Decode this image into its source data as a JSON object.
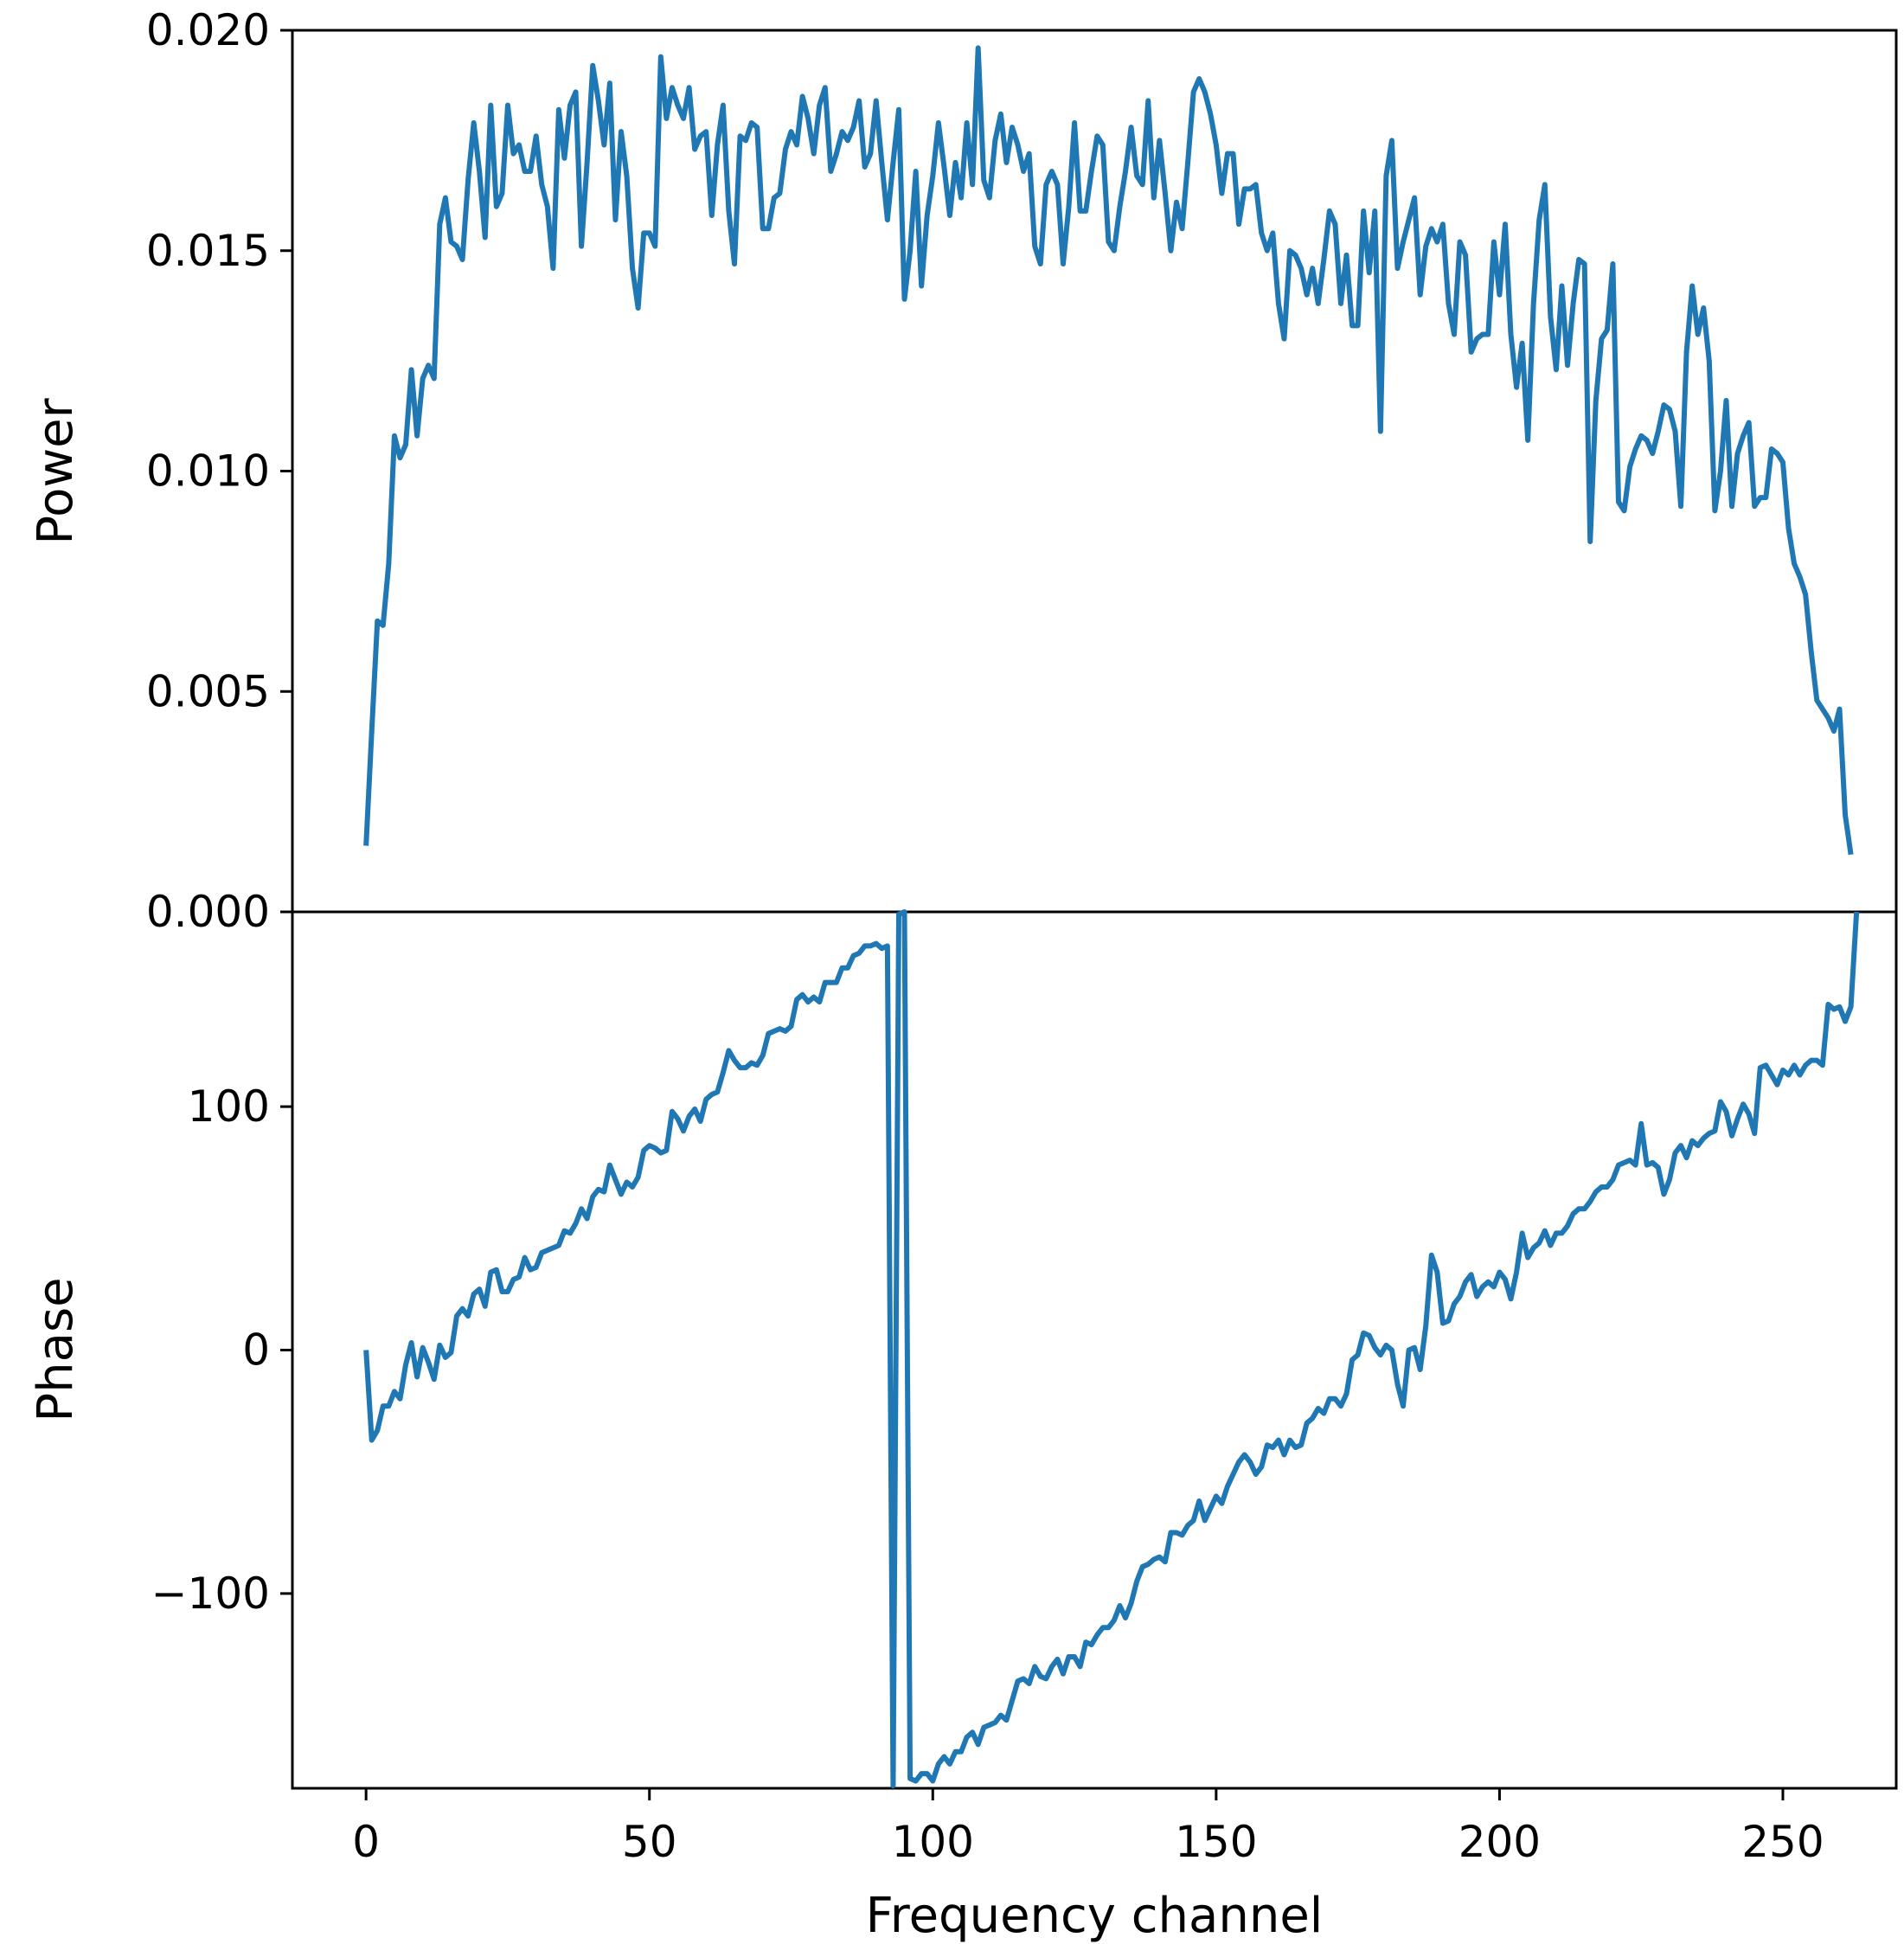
{
  "chart_data": [
    {
      "type": "line",
      "panel": "top",
      "xlabel": "",
      "ylabel": "Power",
      "xlim": [
        -13,
        270
      ],
      "ylim": [
        0.0,
        0.02
      ],
      "yticks": [
        0.0,
        0.005,
        0.01,
        0.015,
        0.02
      ],
      "ytick_labels": [
        "0.000",
        "0.005",
        "0.010",
        "0.015",
        "0.020"
      ],
      "xticks": [
        0,
        50,
        100,
        150,
        200,
        250
      ],
      "xtick_labels": [],
      "grid": false,
      "color": "#1f77b4",
      "x_start": 0,
      "values": [
        0.0015,
        0.0041,
        0.0066,
        0.0065,
        0.0079,
        0.0108,
        0.0103,
        0.0106,
        0.0123,
        0.0108,
        0.0121,
        0.0124,
        0.0121,
        0.0156,
        0.0162,
        0.0152,
        0.0151,
        0.0148,
        0.0166,
        0.0179,
        0.0168,
        0.0153,
        0.0183,
        0.016,
        0.0163,
        0.0183,
        0.0172,
        0.0174,
        0.0168,
        0.0168,
        0.0176,
        0.0165,
        0.016,
        0.0146,
        0.0182,
        0.0171,
        0.0183,
        0.0186,
        0.0151,
        0.017,
        0.0192,
        0.0184,
        0.0174,
        0.0188,
        0.0157,
        0.0177,
        0.0167,
        0.0146,
        0.0137,
        0.0154,
        0.0154,
        0.0151,
        0.0194,
        0.018,
        0.0187,
        0.0183,
        0.018,
        0.0187,
        0.0173,
        0.0176,
        0.0177,
        0.0158,
        0.0174,
        0.0183,
        0.0159,
        0.0147,
        0.0176,
        0.0175,
        0.0179,
        0.0178,
        0.0155,
        0.0155,
        0.0162,
        0.0163,
        0.0173,
        0.0177,
        0.0174,
        0.0185,
        0.018,
        0.0172,
        0.0183,
        0.0187,
        0.0168,
        0.0172,
        0.0177,
        0.0175,
        0.0178,
        0.0184,
        0.0169,
        0.0172,
        0.0184,
        0.017,
        0.0157,
        0.017,
        0.0182,
        0.0139,
        0.015,
        0.0168,
        0.0142,
        0.0158,
        0.0167,
        0.0179,
        0.0169,
        0.0158,
        0.017,
        0.0162,
        0.0179,
        0.0165,
        0.0196,
        0.0166,
        0.0162,
        0.0175,
        0.0181,
        0.017,
        0.0178,
        0.0174,
        0.0168,
        0.0172,
        0.0151,
        0.0147,
        0.0165,
        0.0168,
        0.0165,
        0.0147,
        0.016,
        0.0179,
        0.0159,
        0.0159,
        0.0168,
        0.0176,
        0.0174,
        0.0152,
        0.015,
        0.016,
        0.0168,
        0.0178,
        0.0167,
        0.0165,
        0.0184,
        0.0162,
        0.0175,
        0.0163,
        0.015,
        0.0161,
        0.0155,
        0.017,
        0.0186,
        0.0189,
        0.0186,
        0.0181,
        0.0174,
        0.0163,
        0.0172,
        0.0172,
        0.0156,
        0.0164,
        0.0164,
        0.0165,
        0.0154,
        0.015,
        0.0154,
        0.0138,
        0.013,
        0.015,
        0.0149,
        0.0146,
        0.014,
        0.0146,
        0.0138,
        0.0148,
        0.0159,
        0.0156,
        0.0138,
        0.0149,
        0.0133,
        0.0133,
        0.0159,
        0.0145,
        0.0159,
        0.0109,
        0.0167,
        0.0175,
        0.0146,
        0.0152,
        0.0157,
        0.0162,
        0.014,
        0.0151,
        0.0155,
        0.0152,
        0.0156,
        0.0138,
        0.0131,
        0.0152,
        0.0149,
        0.0127,
        0.013,
        0.0131,
        0.0131,
        0.0152,
        0.014,
        0.0156,
        0.0131,
        0.0119,
        0.0129,
        0.0107,
        0.0138,
        0.0157,
        0.0165,
        0.0135,
        0.0123,
        0.0142,
        0.0124,
        0.0138,
        0.0148,
        0.0147,
        0.0084,
        0.0116,
        0.013,
        0.0132,
        0.0147,
        0.0093,
        0.0091,
        0.0101,
        0.0105,
        0.0108,
        0.0107,
        0.0104,
        0.0109,
        0.0115,
        0.0114,
        0.0109,
        0.0092,
        0.0127,
        0.0142,
        0.0131,
        0.0137,
        0.0125,
        0.0091,
        0.01,
        0.0116,
        0.0092,
        0.0104,
        0.0108,
        0.0111,
        0.0092,
        0.0094,
        0.0094,
        0.0105,
        0.0104,
        0.0102,
        0.0087,
        0.0079,
        0.0076,
        0.0072,
        0.0059,
        0.0048,
        0.0046,
        0.0044,
        0.0041,
        0.0046,
        0.0022,
        0.0013
      ]
    },
    {
      "type": "line",
      "panel": "bottom",
      "xlabel": "Frequency channel",
      "ylabel": "Phase",
      "xlim": [
        -13,
        270
      ],
      "ylim": [
        -180,
        180
      ],
      "yticks": [
        -100,
        0,
        100
      ],
      "ytick_labels": [
        "−100",
        "0",
        "100"
      ],
      "xticks": [
        0,
        50,
        100,
        150,
        200,
        250
      ],
      "xtick_labels": [
        "0",
        "50",
        "100",
        "150",
        "200",
        "250"
      ],
      "grid": false,
      "color": "#1f77b4",
      "x_start": 0,
      "values": [
        0,
        -37,
        -33,
        -23,
        -23,
        -17,
        -20,
        -6,
        3,
        -11,
        1,
        -5,
        -12,
        2,
        -3,
        -1,
        14,
        17,
        14,
        23,
        25,
        18,
        32,
        33,
        24,
        24,
        29,
        30,
        38,
        33,
        34,
        40,
        41,
        42,
        43,
        49,
        48,
        52,
        58,
        54,
        63,
        66,
        65,
        76,
        70,
        64,
        69,
        67,
        71,
        82,
        84,
        83,
        81,
        82,
        98,
        95,
        90,
        96,
        99,
        94,
        103,
        105,
        106,
        114,
        123,
        119,
        116,
        116,
        118,
        117,
        121,
        130,
        131,
        132,
        131,
        133,
        144,
        146,
        143,
        145,
        143,
        151,
        151,
        151,
        157,
        157,
        162,
        163,
        166,
        166,
        167,
        165,
        166,
        -179,
        179,
        180,
        -176,
        -177,
        -174,
        -174,
        -177,
        -170,
        -167,
        -170,
        -165,
        -165,
        -159,
        -157,
        -162,
        -155,
        -154,
        -153,
        -150,
        -152,
        -144,
        -136,
        -135,
        -137,
        -130,
        -134,
        -135,
        -130,
        -127,
        -133,
        -126,
        -126,
        -130,
        -120,
        -121,
        -117,
        -114,
        -114,
        -111,
        -105,
        -110,
        -104,
        -95,
        -89,
        -88,
        -86,
        -85,
        -87,
        -75,
        -75,
        -76,
        -72,
        -70,
        -62,
        -70,
        -65,
        -60,
        -63,
        -56,
        -51,
        -46,
        -43,
        -46,
        -51,
        -48,
        -39,
        -40,
        -37,
        -43,
        -37,
        -40,
        -39,
        -30,
        -28,
        -24,
        -26,
        -20,
        -20,
        -23,
        -18,
        -4,
        -2,
        7,
        6,
        1,
        -2,
        2,
        0,
        -14,
        -23,
        0,
        1,
        -8,
        10,
        39,
        32,
        11,
        12,
        19,
        22,
        28,
        31,
        22,
        26,
        28,
        26,
        32,
        29,
        21,
        32,
        48,
        38,
        42,
        44,
        49,
        43,
        48,
        48,
        51,
        56,
        58,
        58,
        61,
        65,
        67,
        67,
        70,
        76,
        77,
        78,
        76,
        93,
        76,
        77,
        75,
        64,
        70,
        81,
        84,
        79,
        86,
        84,
        87,
        89,
        90,
        102,
        98,
        88,
        95,
        101,
        97,
        89,
        116,
        117,
        113,
        109,
        115,
        113,
        117,
        113,
        117,
        119,
        119,
        117,
        142,
        140,
        141,
        135,
        141,
        180
      ]
    }
  ]
}
